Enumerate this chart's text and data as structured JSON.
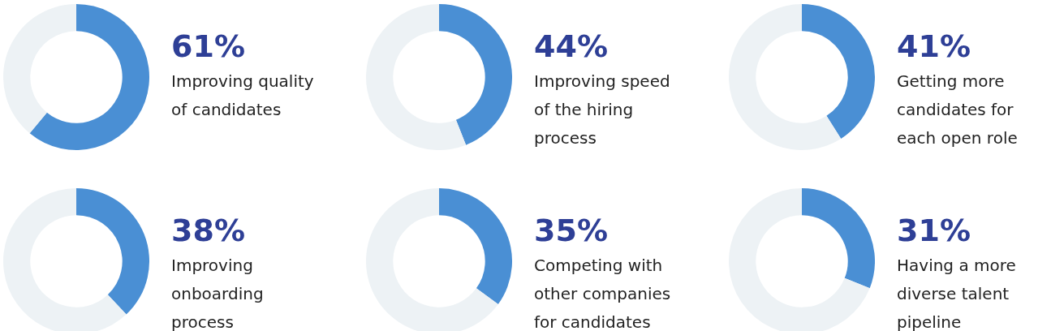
{
  "chart_data": [
    {
      "type": "donut",
      "categories": [
        "Improving quality of candidates",
        null
      ],
      "values": [
        61,
        39
      ],
      "colors": [
        "#4a8fd4",
        "#edf2f5"
      ],
      "value_labels": [
        "61%",
        null
      ]
    },
    {
      "type": "donut",
      "categories": [
        "Improving speed of the hiring process",
        null
      ],
      "values": [
        44,
        56
      ],
      "colors": [
        "#4a8fd4",
        "#edf2f5"
      ],
      "value_labels": [
        "44%",
        null
      ]
    },
    {
      "type": "donut",
      "categories": [
        "Getting more candidates for each open role",
        null
      ],
      "values": [
        41,
        59
      ],
      "colors": [
        "#4a8fd4",
        "#edf2f5"
      ],
      "value_labels": [
        "41%",
        null
      ]
    },
    {
      "type": "donut",
      "categories": [
        "Improving onboarding process",
        null
      ],
      "values": [
        38,
        62
      ],
      "colors": [
        "#4a8fd4",
        "#edf2f5"
      ],
      "value_labels": [
        "38%",
        null
      ]
    },
    {
      "type": "donut",
      "categories": [
        "Competing with other companies for candidates",
        null
      ],
      "values": [
        35,
        65
      ],
      "colors": [
        "#4a8fd4",
        "#edf2f5"
      ],
      "value_labels": [
        "35%",
        null
      ]
    },
    {
      "type": "donut",
      "categories": [
        "Having a more diverse talent pipeline",
        null
      ],
      "values": [
        31,
        69
      ],
      "colors": [
        "#4a8fd4",
        "#edf2f5"
      ],
      "value_labels": [
        "31%",
        null
      ]
    }
  ]
}
